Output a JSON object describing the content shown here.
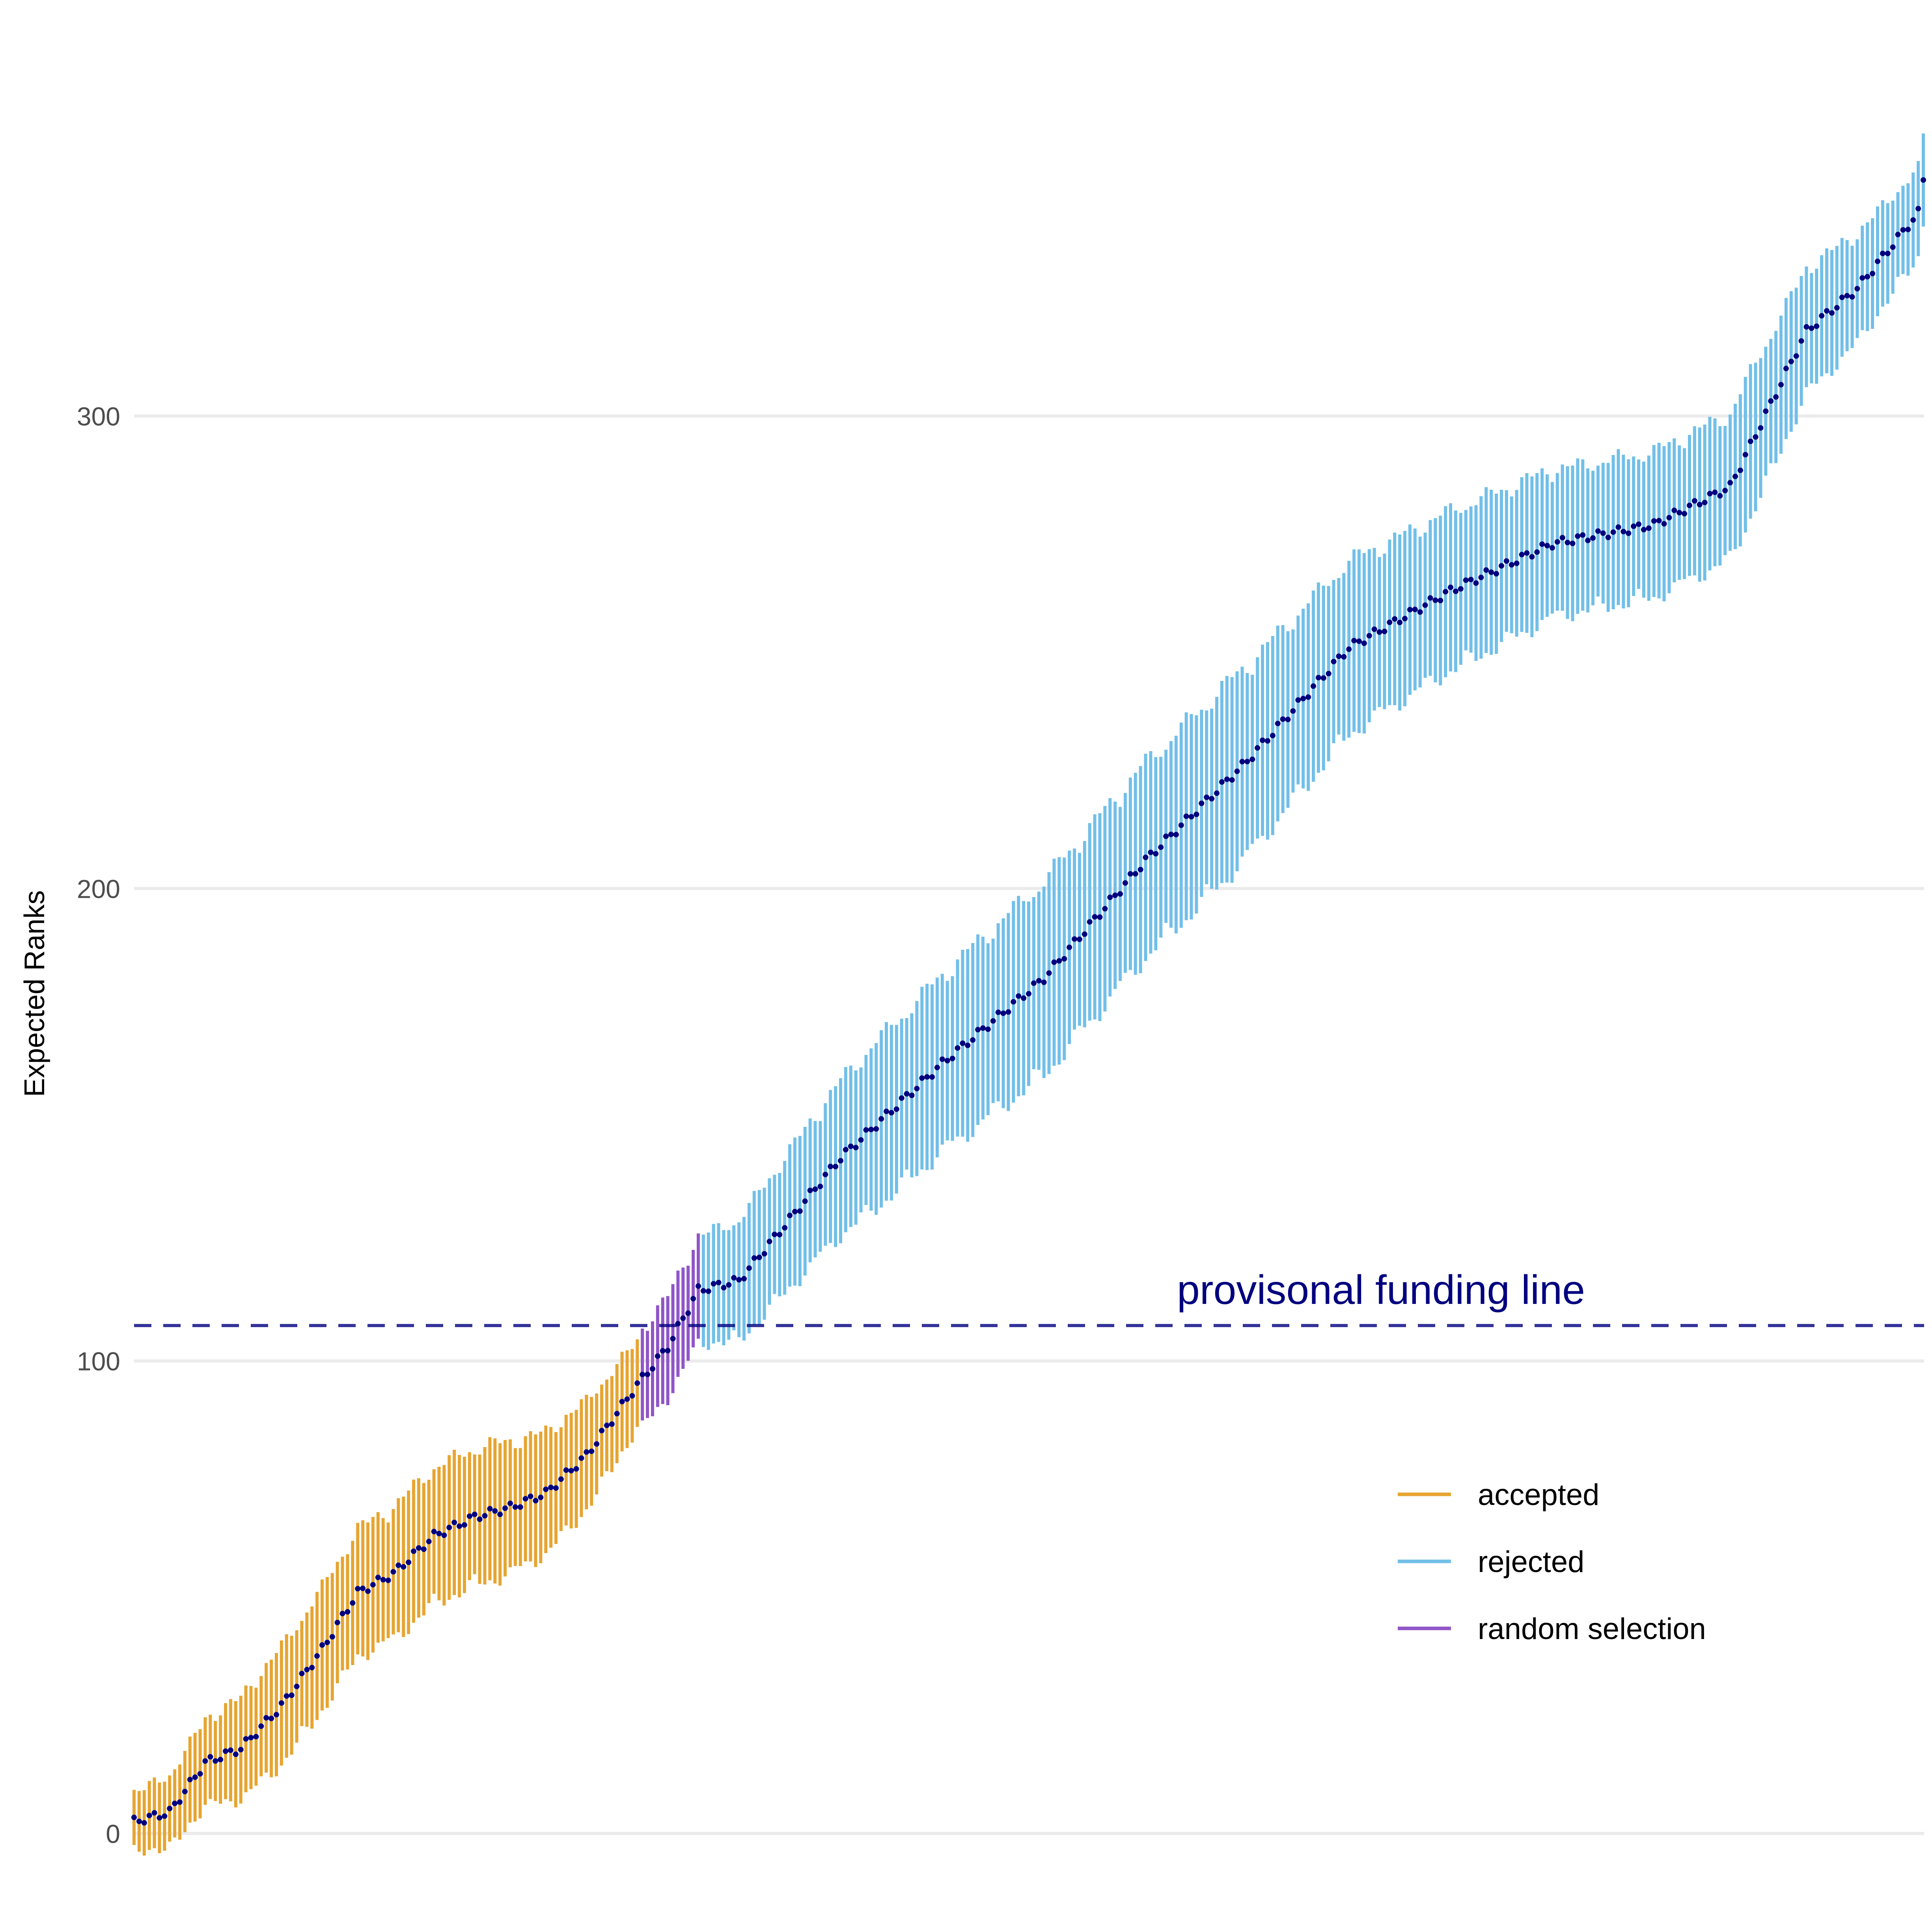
{
  "chart_data": {
    "type": "scatter",
    "title": "",
    "xlabel": "",
    "ylabel": "Expected Ranks",
    "ylim": [
      0,
      353
    ],
    "yticks": [
      0,
      100,
      200,
      300
    ],
    "n_points": 353,
    "grid": "horizontal major",
    "legend_position": "bottom-right",
    "point_color": "#00007f",
    "reference_line": {
      "value": 107.5,
      "label": "provisonal funding line",
      "color": "#00007f",
      "style": "dashed"
    },
    "series": [
      {
        "name": "accepted",
        "color": "#E6A532",
        "knots": [
          [
            1,
            2.5
          ],
          [
            8,
            4.5
          ],
          [
            15,
            15
          ],
          [
            22,
            18
          ],
          [
            30,
            27
          ],
          [
            38,
            39
          ],
          [
            45,
            51
          ],
          [
            52,
            55
          ],
          [
            60,
            63
          ],
          [
            68,
            67
          ],
          [
            75,
            69
          ],
          [
            82,
            72
          ],
          [
            90,
            80
          ],
          [
            100,
            95
          ]
        ],
        "interval_width": [
          12,
          18,
          24,
          26,
          28,
          28,
          24,
          18
        ]
      },
      {
        "name": "random selection",
        "color": "#9055C8",
        "knots": [
          [
            100,
            95
          ],
          [
            106,
            103
          ],
          [
            112,
            115
          ]
        ],
        "interval_width": [
          20,
          22
        ]
      },
      {
        "name": "rejected",
        "color": "#72BFE8",
        "knots": [
          [
            112,
            115
          ],
          [
            120,
            117
          ],
          [
            140,
            143
          ],
          [
            160,
            163
          ],
          [
            180,
            181
          ],
          [
            200,
            206
          ],
          [
            220,
            227
          ],
          [
            240,
            251
          ],
          [
            260,
            263
          ],
          [
            280,
            273
          ],
          [
            300,
            277
          ],
          [
            315,
            285
          ],
          [
            330,
            318
          ],
          [
            340,
            327
          ],
          [
            352,
            343
          ],
          [
            353,
            350
          ]
        ],
        "interval_width": [
          22,
          34,
          40,
          40,
          34,
          30,
          30,
          18
        ]
      }
    ]
  }
}
